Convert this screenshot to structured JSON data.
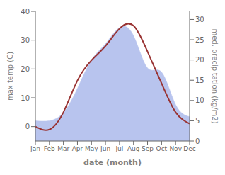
{
  "chart_data": {
    "type": "line",
    "xlabel": "date (month)",
    "ylabel": "max temp (C)",
    "y2label": "med. precipitation (kg/m2)",
    "categories": [
      "Jan",
      "Feb",
      "Mar",
      "Apr",
      "May",
      "Jun",
      "Jul",
      "Aug",
      "Sep",
      "Oct",
      "Nov",
      "Dec"
    ],
    "series": [
      {
        "type": "area",
        "axis": "y2",
        "color": "#b8c4ee",
        "values": [
          5.0,
          5.0,
          7.0,
          13.0,
          20.0,
          24.0,
          28.0,
          26.0,
          18.0,
          17.0,
          9.0,
          6.0
        ]
      },
      {
        "type": "line",
        "color": "#993333",
        "values": [
          0.0,
          -1.0,
          5.0,
          16.0,
          23.0,
          28.0,
          34.0,
          35.0,
          26.0,
          15.0,
          5.0,
          1.0
        ]
      }
    ],
    "ylim": [
      -5,
      40
    ],
    "yticks": [
      0,
      10,
      20,
      30,
      40
    ],
    "y2lim": [
      0,
      32
    ],
    "y2ticks": [
      0,
      5,
      10,
      15,
      20,
      25,
      30
    ],
    "grid": false
  }
}
